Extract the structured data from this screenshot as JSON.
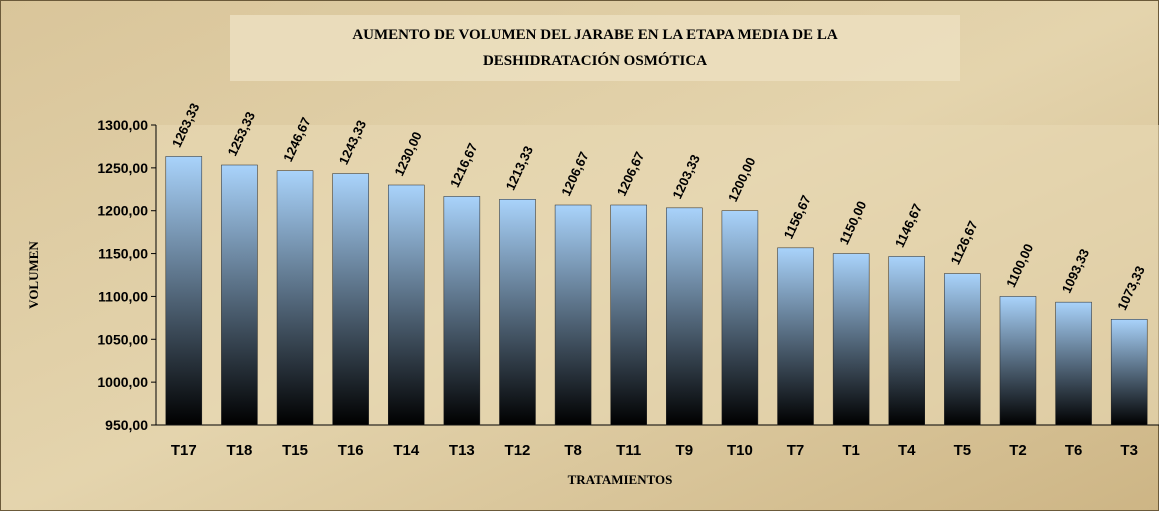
{
  "chart_data": {
    "type": "bar",
    "title": [
      "AUMENTO DE VOLUMEN DEL JARABE EN LA ETAPA MEDIA DE LA",
      "DESHIDRATACIÓN OSMÓTICA"
    ],
    "x_label": "TRATAMIENTOS",
    "y_label": "VOLUMEN",
    "categories": [
      "T17",
      "T18",
      "T15",
      "T16",
      "T14",
      "T13",
      "T12",
      "T8",
      "T11",
      "T9",
      "T10",
      "T7",
      "T1",
      "T4",
      "T5",
      "T2",
      "T6",
      "T3"
    ],
    "values": [
      1263.33,
      1253.33,
      1246.67,
      1243.33,
      1230,
      1216.67,
      1213.33,
      1206.67,
      1206.67,
      1203.33,
      1200,
      1156.67,
      1150,
      1146.67,
      1126.67,
      1100,
      1093.33,
      1073.33
    ],
    "value_labels": [
      "1263,33",
      "1253,33",
      "1246,67",
      "1243,33",
      "1230,00",
      "1216,67",
      "1213,33",
      "1206,67",
      "1206,67",
      "1203,33",
      "1200,00",
      "1156,67",
      "1150,00",
      "1146,67",
      "1126,67",
      "1100,00",
      "1093,33",
      "1073,33"
    ],
    "ylim": [
      950,
      1300
    ],
    "yticks": [
      {
        "value": 950,
        "label": "950,00"
      },
      {
        "value": 1000,
        "label": "1000,00"
      },
      {
        "value": 1050,
        "label": "1050,00"
      },
      {
        "value": 1100,
        "label": "1100,00"
      },
      {
        "value": 1150,
        "label": "1150,00"
      },
      {
        "value": 1200,
        "label": "1200,00"
      },
      {
        "value": 1250,
        "label": "1250,00"
      },
      {
        "value": 1300,
        "label": "1300,00"
      }
    ],
    "grid": false,
    "color": [
      "#a9d3fb",
      "#000000"
    ]
  }
}
